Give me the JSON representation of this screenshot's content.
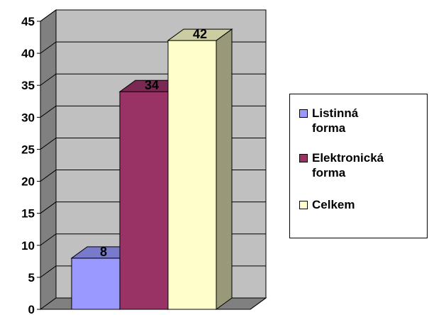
{
  "chart_data": {
    "type": "bar",
    "categories": [
      "Listinná forma",
      "Elektronická forma",
      "Celkem"
    ],
    "values": [
      8,
      34,
      42
    ],
    "ylim": [
      0,
      45
    ],
    "yticks": [
      0,
      5,
      10,
      15,
      20,
      25,
      30,
      35,
      40,
      45
    ],
    "grid": true,
    "three_d": true,
    "legend_position": "right",
    "colors": [
      "#9999ff",
      "#993366",
      "#ffffcc"
    ],
    "side_colors": [
      "#5c5c99",
      "#5c1f3d",
      "#99997a"
    ],
    "top_colors": [
      "#7a7acc",
      "#7a2952",
      "#cccca3"
    ]
  },
  "legend": {
    "items": [
      {
        "label": "Listinná\nforma",
        "color": "#9999ff"
      },
      {
        "label": "Elektronická\nforma",
        "color": "#993366"
      },
      {
        "label": "Celkem",
        "color": "#ffffcc"
      }
    ]
  },
  "style": {
    "wall_color": "#c0c0c0",
    "floor_color": "#808080"
  }
}
